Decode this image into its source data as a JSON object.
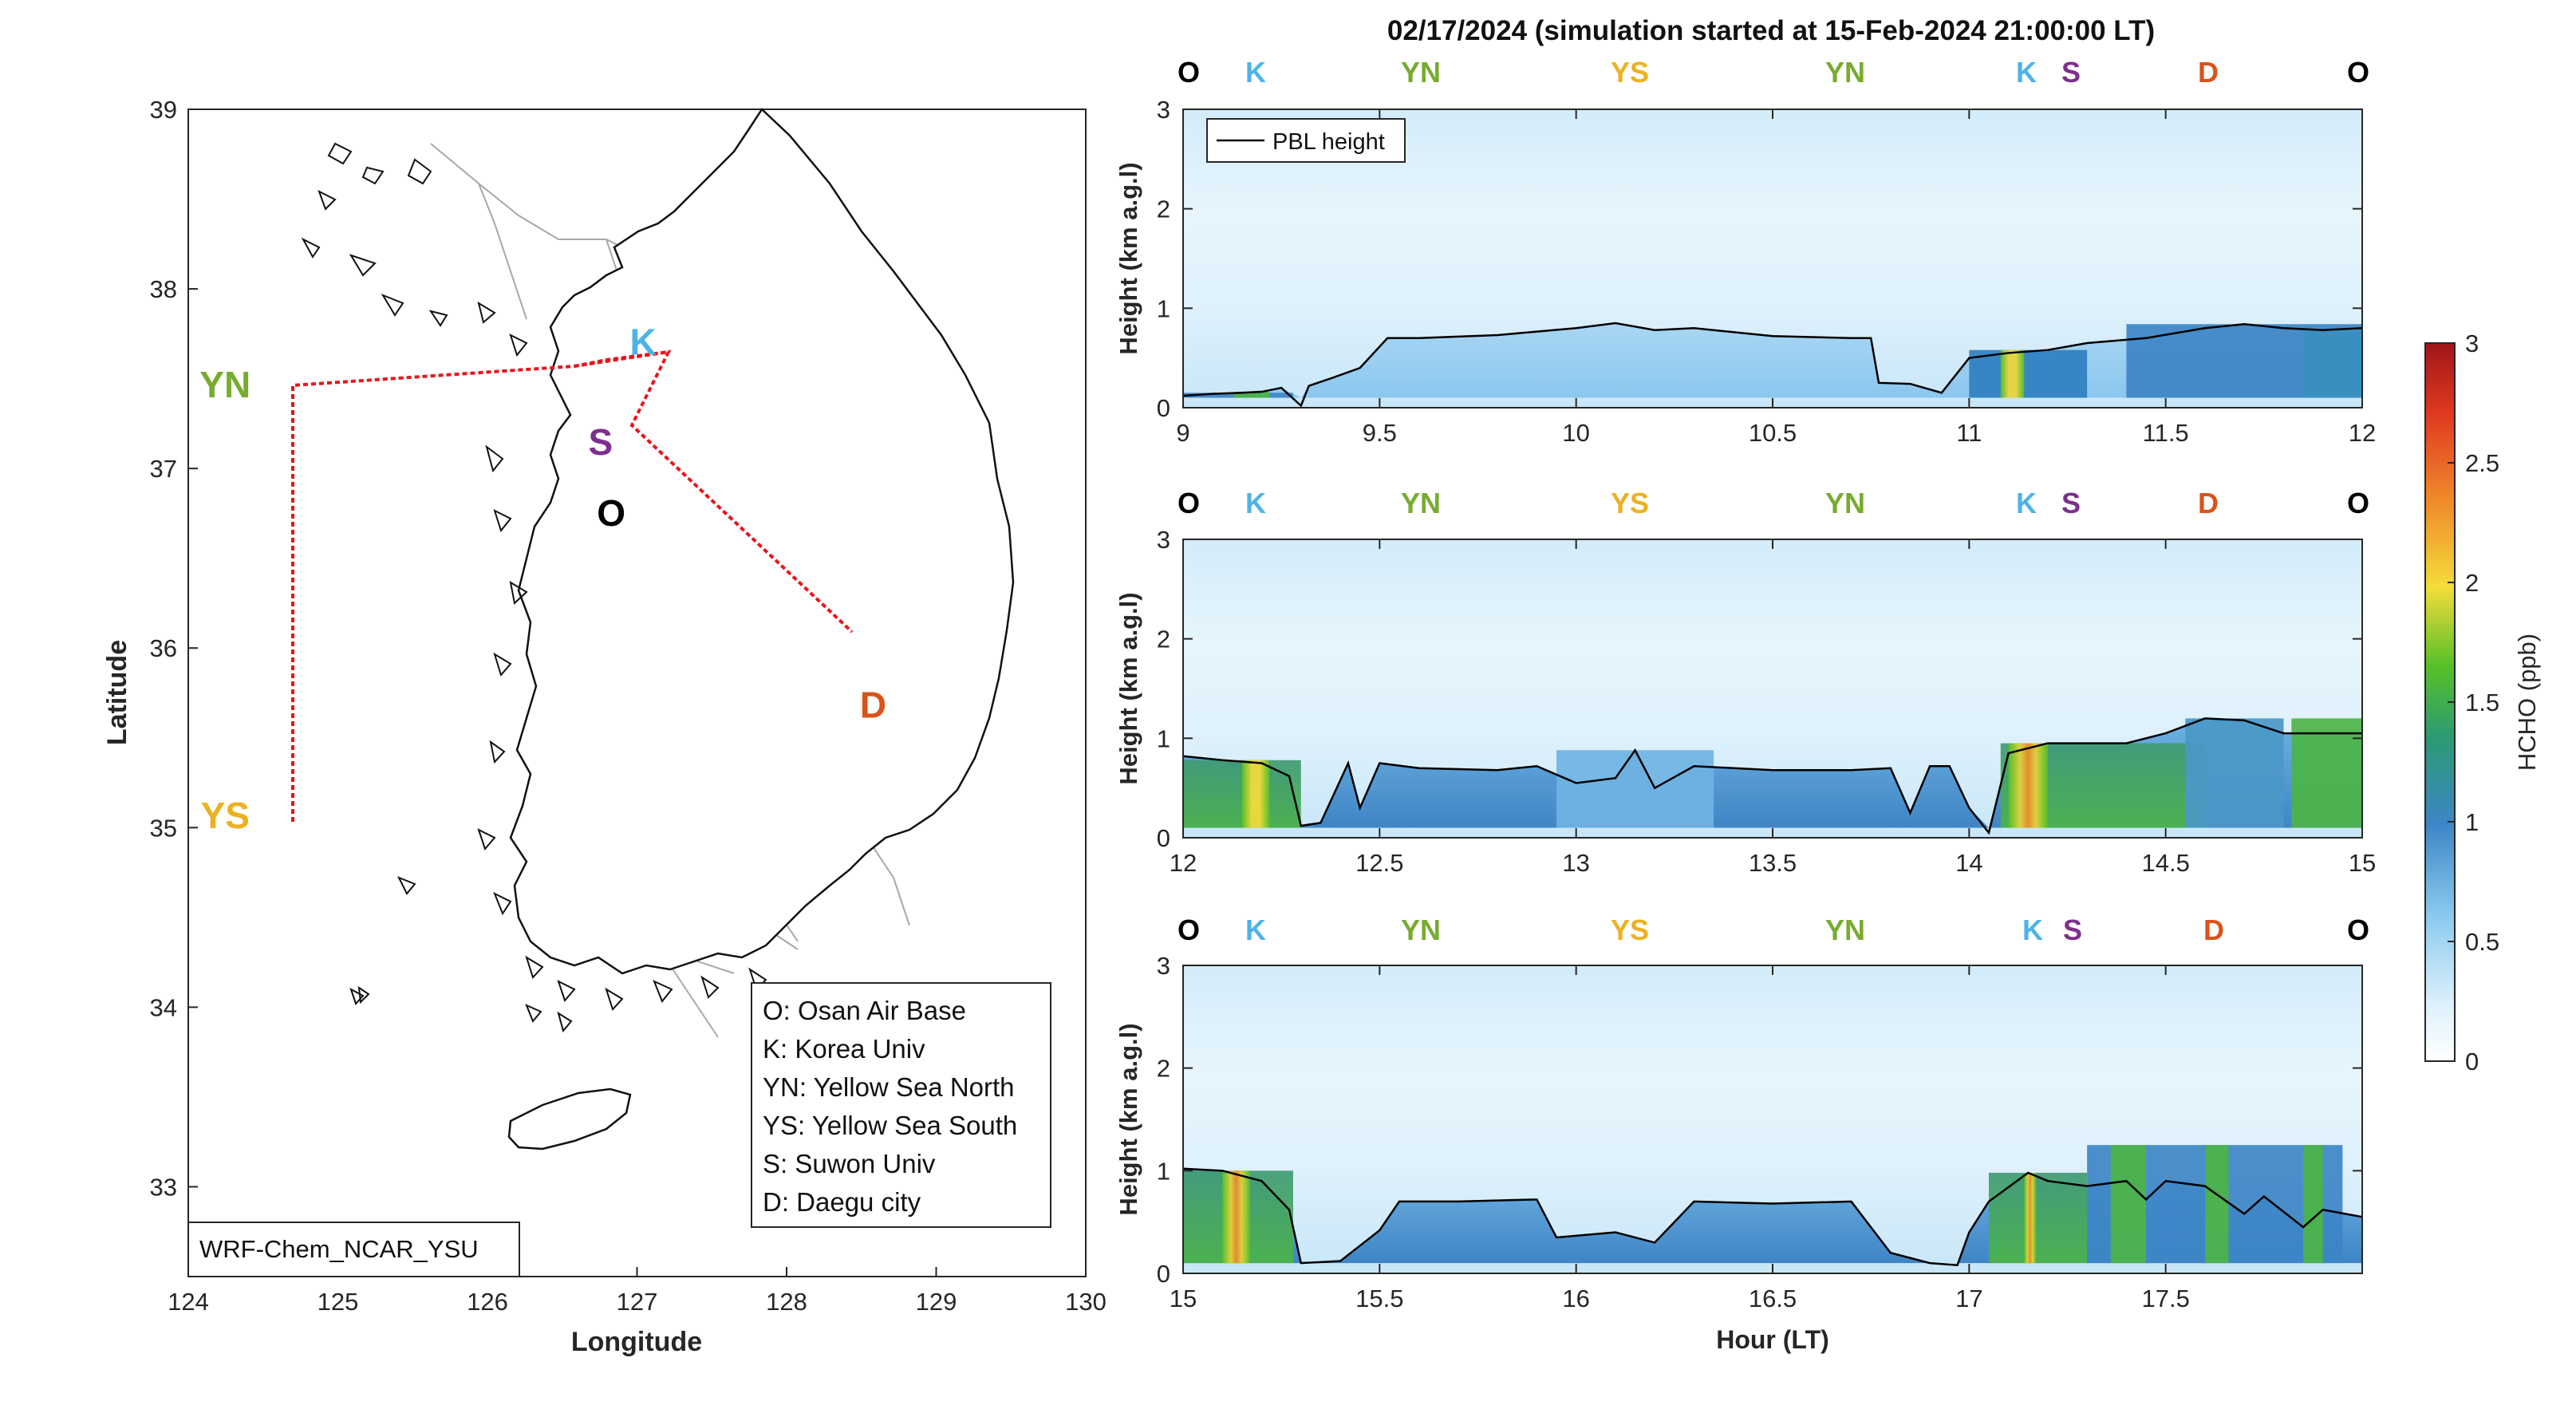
{
  "colors": {
    "O": "#000000",
    "K": "#4db3e6",
    "YN": "#77ac30",
    "YS": "#edb120",
    "S": "#7e2f8e",
    "D": "#d95319",
    "track": "#e8141a",
    "pbl": "#000000"
  },
  "map": {
    "xlabel": "Longitude",
    "ylabel": "Latitude",
    "xticks": [
      "124",
      "125",
      "126",
      "127",
      "128",
      "129",
      "130"
    ],
    "yticks": [
      "39",
      "38",
      "37",
      "36",
      "35",
      "34",
      "33"
    ],
    "xlim": [
      124,
      130
    ],
    "ylim": [
      32.5,
      39
    ],
    "model_label": "WRF-Chem_NCAR_YSU",
    "sites": [
      {
        "code": "K",
        "lon": 127.03,
        "lat": 37.59
      },
      {
        "code": "S",
        "lon": 126.97,
        "lat": 37.29
      },
      {
        "code": "O",
        "lon": 127.03,
        "lat": 37.09
      },
      {
        "code": "YN",
        "lon": 124.7,
        "lat": 37.45
      },
      {
        "code": "YS",
        "lon": 124.7,
        "lat": 35.05
      },
      {
        "code": "D",
        "lon": 128.6,
        "lat": 35.87
      }
    ],
    "legend": [
      "O: Osan Air Base",
      "K: Korea Univ",
      "YN: Yellow Sea North",
      "YS: Yellow Sea South",
      "S: Suwon Univ",
      "D: Daegu city"
    ]
  },
  "chart_data": {
    "type": "heatmap",
    "title": "02/17/2024 (simulation started at 15-Feb-2024 21:00:00 LT)",
    "ylabel": "Height (km a.g.l)",
    "xlabel": "Hour (LT)",
    "colorbar": {
      "label": "HCHO (ppb)",
      "range": [
        0,
        3
      ],
      "ticks": [
        "0",
        "0.5",
        "1",
        "1.5",
        "2",
        "2.5",
        "3"
      ]
    },
    "legend": "PBL height",
    "site_sequence": [
      "O",
      "K",
      "YN",
      "YS",
      "YN",
      "K",
      "S",
      "D",
      "O"
    ],
    "panels": [
      {
        "xlim": [
          9,
          12
        ],
        "ylim": [
          0,
          3
        ],
        "xticks": [
          "9",
          "9.5",
          "10",
          "10.5",
          "11",
          "11.5",
          "12"
        ],
        "yticks": [
          "0",
          "1",
          "2",
          "3"
        ],
        "pbl_height": [
          [
            9,
            0.12
          ],
          [
            9.08,
            0.14
          ],
          [
            9.15,
            0.15
          ],
          [
            9.2,
            0.16
          ],
          [
            9.25,
            0.2
          ],
          [
            9.3,
            0.02
          ],
          [
            9.32,
            0.22
          ],
          [
            9.38,
            0.3
          ],
          [
            9.45,
            0.4
          ],
          [
            9.52,
            0.7
          ],
          [
            9.6,
            0.7
          ],
          [
            9.8,
            0.73
          ],
          [
            10,
            0.8
          ],
          [
            10.1,
            0.85
          ],
          [
            10.2,
            0.78
          ],
          [
            10.3,
            0.8
          ],
          [
            10.5,
            0.72
          ],
          [
            10.7,
            0.7
          ],
          [
            10.75,
            0.7
          ],
          [
            10.77,
            0.25
          ],
          [
            10.85,
            0.24
          ],
          [
            10.93,
            0.15
          ],
          [
            11,
            0.5
          ],
          [
            11.1,
            0.55
          ],
          [
            11.2,
            0.58
          ],
          [
            11.3,
            0.65
          ],
          [
            11.45,
            0.7
          ],
          [
            11.6,
            0.8
          ],
          [
            11.7,
            0.84
          ],
          [
            11.8,
            0.8
          ],
          [
            11.9,
            0.78
          ],
          [
            12,
            0.8
          ]
        ]
      },
      {
        "xlim": [
          12,
          15
        ],
        "ylim": [
          0,
          3
        ],
        "xticks": [
          "12",
          "12.5",
          "13",
          "13.5",
          "14",
          "14.5",
          "15"
        ],
        "yticks": [
          "0",
          "1",
          "2",
          "3"
        ],
        "pbl_height": [
          [
            12,
            0.82
          ],
          [
            12.1,
            0.78
          ],
          [
            12.2,
            0.75
          ],
          [
            12.27,
            0.62
          ],
          [
            12.3,
            0.12
          ],
          [
            12.35,
            0.15
          ],
          [
            12.42,
            0.75
          ],
          [
            12.45,
            0.3
          ],
          [
            12.5,
            0.75
          ],
          [
            12.6,
            0.7
          ],
          [
            12.8,
            0.68
          ],
          [
            12.9,
            0.72
          ],
          [
            13,
            0.55
          ],
          [
            13.1,
            0.6
          ],
          [
            13.15,
            0.88
          ],
          [
            13.2,
            0.5
          ],
          [
            13.3,
            0.72
          ],
          [
            13.5,
            0.68
          ],
          [
            13.7,
            0.68
          ],
          [
            13.8,
            0.7
          ],
          [
            13.85,
            0.25
          ],
          [
            13.9,
            0.72
          ],
          [
            13.95,
            0.72
          ],
          [
            14,
            0.3
          ],
          [
            14.05,
            0.05
          ],
          [
            14.1,
            0.85
          ],
          [
            14.2,
            0.95
          ],
          [
            14.4,
            0.95
          ],
          [
            14.5,
            1.05
          ],
          [
            14.6,
            1.2
          ],
          [
            14.7,
            1.18
          ],
          [
            14.8,
            1.05
          ],
          [
            15,
            1.05
          ]
        ]
      },
      {
        "xlim": [
          15,
          18
        ],
        "ylim": [
          0,
          3
        ],
        "xticks": [
          "15",
          "15.5",
          "16",
          "16.5",
          "17",
          "17.5"
        ],
        "yticks": [
          "0",
          "1",
          "2",
          "3"
        ],
        "pbl_height": [
          [
            15,
            1.02
          ],
          [
            15.1,
            1
          ],
          [
            15.2,
            0.9
          ],
          [
            15.27,
            0.62
          ],
          [
            15.3,
            0.1
          ],
          [
            15.4,
            0.12
          ],
          [
            15.5,
            0.42
          ],
          [
            15.55,
            0.7
          ],
          [
            15.7,
            0.7
          ],
          [
            15.9,
            0.72
          ],
          [
            15.95,
            0.35
          ],
          [
            16.1,
            0.4
          ],
          [
            16.2,
            0.3
          ],
          [
            16.3,
            0.7
          ],
          [
            16.5,
            0.68
          ],
          [
            16.7,
            0.7
          ],
          [
            16.75,
            0.45
          ],
          [
            16.8,
            0.2
          ],
          [
            16.9,
            0.1
          ],
          [
            16.97,
            0.08
          ],
          [
            17,
            0.4
          ],
          [
            17.05,
            0.7
          ],
          [
            17.15,
            0.98
          ],
          [
            17.2,
            0.9
          ],
          [
            17.3,
            0.85
          ],
          [
            17.4,
            0.9
          ],
          [
            17.45,
            0.72
          ],
          [
            17.5,
            0.9
          ],
          [
            17.6,
            0.85
          ],
          [
            17.7,
            0.58
          ],
          [
            17.75,
            0.75
          ],
          [
            17.85,
            0.45
          ],
          [
            17.9,
            0.62
          ],
          [
            18,
            0.55
          ]
        ]
      }
    ]
  }
}
